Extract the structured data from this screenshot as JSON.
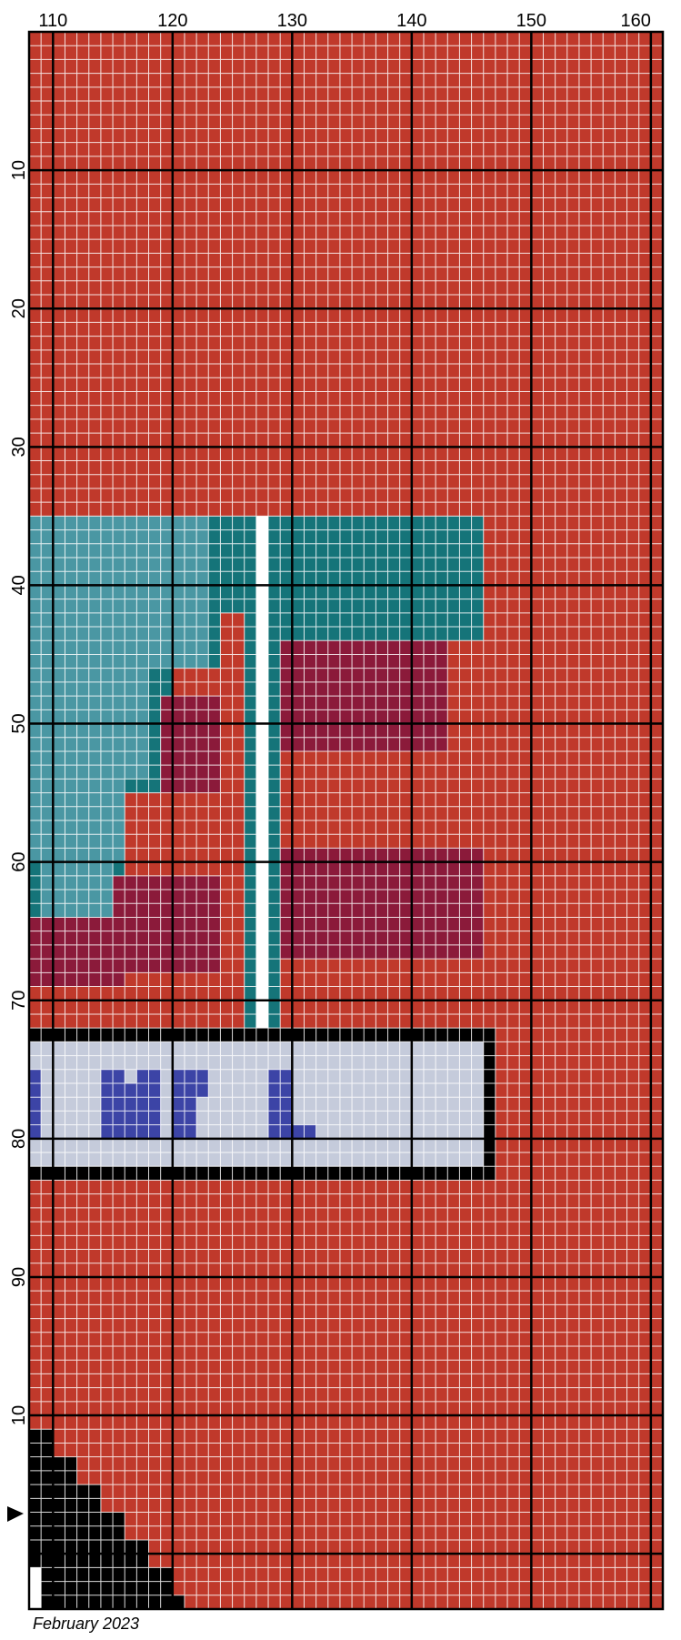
{
  "pattern": {
    "cols": 53,
    "rows": 114,
    "first_col_number": 108,
    "top_axis_labels": [
      "110",
      "120",
      "130",
      "140",
      "150",
      "160"
    ],
    "left_axis_labels": [
      "10",
      "20",
      "30",
      "40",
      "50",
      "60",
      "70",
      "80",
      "90",
      "10"
    ],
    "footer": "February 2023",
    "colors": {
      "background_red": "#c0392b",
      "dark_red": "#8b1a3a",
      "teal_light": "#4a97a3",
      "teal_dark": "#157479",
      "white": "#ffffff",
      "black": "#000000",
      "light_gray": "#c5cbdb",
      "blue": "#3c44a6",
      "cell_line": "#ffffff",
      "grid_line": "#000000"
    },
    "legend_codes": {
      "R": "background_red",
      "D": "dark_red",
      "L": "teal_light",
      "T": "teal_dark",
      "W": "white",
      "K": "black",
      "G": "light_gray",
      "B": "blue"
    },
    "regions": [
      {
        "r0": 35,
        "r1": 72,
        "c0": 0,
        "c1": 38,
        "code": "T"
      },
      {
        "r0": 35,
        "r1": 46,
        "c0": 0,
        "c1": 15,
        "code": "L"
      },
      {
        "r0": 46,
        "r1": 54,
        "c0": 0,
        "c1": 10,
        "code": "L"
      },
      {
        "r0": 54,
        "r1": 60,
        "c0": 0,
        "c1": 8,
        "code": "L"
      },
      {
        "r0": 60,
        "r1": 64,
        "c0": 1,
        "c1": 7,
        "code": "L"
      },
      {
        "r0": 64,
        "r1": 66,
        "c0": 3,
        "c1": 6,
        "code": "L"
      },
      {
        "r0": 35,
        "r1": 72,
        "c0": 19,
        "c1": 20,
        "code": "W"
      },
      {
        "r0": 42,
        "r1": 72,
        "c0": 16,
        "c1": 18,
        "code": "R"
      },
      {
        "r0": 46,
        "r1": 72,
        "c0": 12,
        "c1": 18,
        "code": "R"
      },
      {
        "r0": 55,
        "r1": 72,
        "c0": 8,
        "c1": 18,
        "code": "R"
      },
      {
        "r0": 64,
        "r1": 72,
        "c0": 0,
        "c1": 18,
        "code": "R"
      },
      {
        "r0": 48,
        "r1": 55,
        "c0": 11,
        "c1": 16,
        "code": "D"
      },
      {
        "r0": 61,
        "r1": 68,
        "c0": 7,
        "c1": 16,
        "code": "D"
      },
      {
        "r0": 64,
        "r1": 69,
        "c0": 0,
        "c1": 8,
        "code": "D"
      },
      {
        "r0": 44,
        "r1": 72,
        "c0": 21,
        "c1": 38,
        "code": "R"
      },
      {
        "r0": 44,
        "r1": 52,
        "c0": 21,
        "c1": 35,
        "code": "D"
      },
      {
        "r0": 59,
        "r1": 67,
        "c0": 21,
        "c1": 38,
        "code": "D"
      },
      {
        "r0": 72,
        "r1": 83,
        "c0": 0,
        "c1": 39,
        "code": "K"
      },
      {
        "r0": 73,
        "r1": 82,
        "c0": 0,
        "c1": 38,
        "code": "G"
      },
      {
        "r0": 75,
        "r1": 80,
        "c0": 0,
        "c1": 1,
        "code": "B"
      },
      {
        "r0": 75,
        "r1": 80,
        "c0": 6,
        "c1": 8,
        "code": "B"
      },
      {
        "r0": 76,
        "r1": 80,
        "c0": 8,
        "c1": 9,
        "code": "B"
      },
      {
        "r0": 75,
        "r1": 80,
        "c0": 9,
        "c1": 11,
        "code": "B"
      },
      {
        "r0": 75,
        "r1": 80,
        "c0": 12,
        "c1": 14,
        "code": "B"
      },
      {
        "r0": 75,
        "r1": 77,
        "c0": 14,
        "c1": 15,
        "code": "B"
      },
      {
        "r0": 75,
        "r1": 80,
        "c0": 20,
        "c1": 22,
        "code": "B"
      },
      {
        "r0": 79,
        "r1": 80,
        "c0": 22,
        "c1": 24,
        "code": "B"
      },
      {
        "r0": 101,
        "r1": 103,
        "c0": 0,
        "c1": 2,
        "code": "K"
      },
      {
        "r0": 103,
        "r1": 105,
        "c0": 0,
        "c1": 4,
        "code": "K"
      },
      {
        "r0": 105,
        "r1": 107,
        "c0": 0,
        "c1": 6,
        "code": "K"
      },
      {
        "r0": 107,
        "r1": 109,
        "c0": 0,
        "c1": 8,
        "code": "K"
      },
      {
        "r0": 109,
        "r1": 111,
        "c0": 0,
        "c1": 10,
        "code": "K"
      },
      {
        "r0": 111,
        "r1": 113,
        "c0": 0,
        "c1": 12,
        "code": "K"
      },
      {
        "r0": 113,
        "r1": 114,
        "c0": 0,
        "c1": 13,
        "code": "K"
      },
      {
        "r0": 111,
        "r1": 114,
        "c0": 0,
        "c1": 1,
        "code": "W"
      }
    ]
  }
}
